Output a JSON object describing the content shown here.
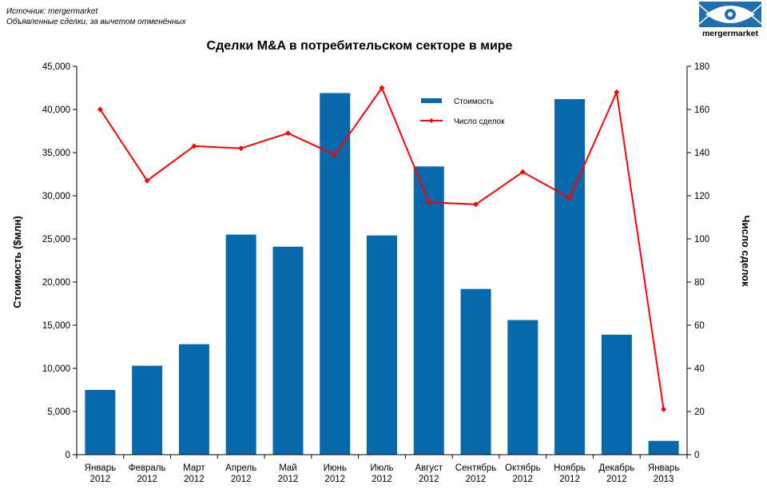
{
  "header": {
    "source_note": "Источник: mergermarket",
    "subtitle_note": "Объявленные сделки, за вычетом отменённых",
    "logo_text": "mergermarket"
  },
  "colors": {
    "bar": "#0868ac",
    "line": "#ff0000",
    "logo_bg": "#1f6fb0"
  },
  "chart_data": {
    "type": "bar+line",
    "title": "Сделки M&A в потребительском секторе в мире",
    "ylabel": "Стоимость ($млн)",
    "y2label": "Число сделок",
    "ylim": [
      0,
      45000
    ],
    "y2lim": [
      0,
      180
    ],
    "yticks": [
      "0",
      "5,000",
      "10,000",
      "15,000",
      "20,000",
      "25,000",
      "30,000",
      "35,000",
      "40,000",
      "45,000"
    ],
    "y2ticks": [
      "0",
      "20",
      "40",
      "60",
      "80",
      "100",
      "120",
      "140",
      "160",
      "180"
    ],
    "categories": [
      [
        "Январь",
        "2012"
      ],
      [
        "Февраль",
        "2012"
      ],
      [
        "Март",
        "2012"
      ],
      [
        "Апрель",
        "2012"
      ],
      [
        "Май",
        "2012"
      ],
      [
        "Июнь",
        "2012"
      ],
      [
        "Июль",
        "2012"
      ],
      [
        "Август",
        "2012"
      ],
      [
        "Сентябрь",
        "2012"
      ],
      [
        "Октябрь",
        "2012"
      ],
      [
        "Ноябрь",
        "2012"
      ],
      [
        "Декабрь",
        "2012"
      ],
      [
        "Январь",
        "2013"
      ]
    ],
    "series": [
      {
        "name": "Стоимость",
        "type": "bar",
        "axis": "left",
        "values": [
          7500,
          10300,
          12800,
          25500,
          24100,
          41900,
          25400,
          33400,
          19200,
          15600,
          41200,
          13900,
          1600
        ]
      },
      {
        "name": "Число сделок",
        "type": "line",
        "axis": "right",
        "values": [
          160,
          127,
          143,
          142,
          149,
          139,
          170,
          117,
          116,
          131,
          119,
          168,
          21
        ]
      }
    ],
    "legend_position": "top-center",
    "grid": false
  }
}
